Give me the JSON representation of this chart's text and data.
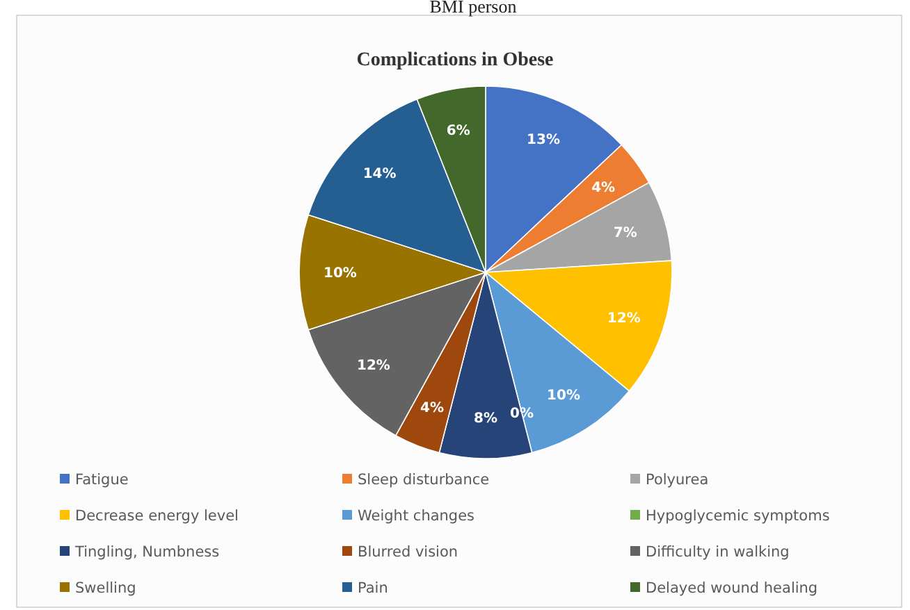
{
  "chart_data": {
    "type": "pie",
    "title": "Complications in Obese",
    "annotations": [
      "BMI person"
    ],
    "categories": [
      "Fatigue",
      "Sleep disturbance",
      "Polyurea",
      "Decrease energy level",
      "Weight changes",
      "Hypoglycemic symptoms",
      "Tingling, Numbness",
      "Blurred vision",
      "Difficulty in walking",
      "Swelling",
      "Pain",
      "Delayed wound healing"
    ],
    "values": [
      13,
      4,
      7,
      12,
      10,
      0,
      8,
      4,
      12,
      10,
      14,
      6
    ],
    "colors": [
      "#4472c4",
      "#ed7d31",
      "#a5a5a5",
      "#ffc000",
      "#5b9bd5",
      "#70ad47",
      "#264478",
      "#9e480e",
      "#636363",
      "#997300",
      "#255e91",
      "#43682b"
    ],
    "value_labels": [
      "13%",
      "4%",
      "7%",
      "12%",
      "10%",
      "0%",
      "8%",
      "4%",
      "12%",
      "10%",
      "14%",
      "6%"
    ],
    "legend": "bottom"
  }
}
